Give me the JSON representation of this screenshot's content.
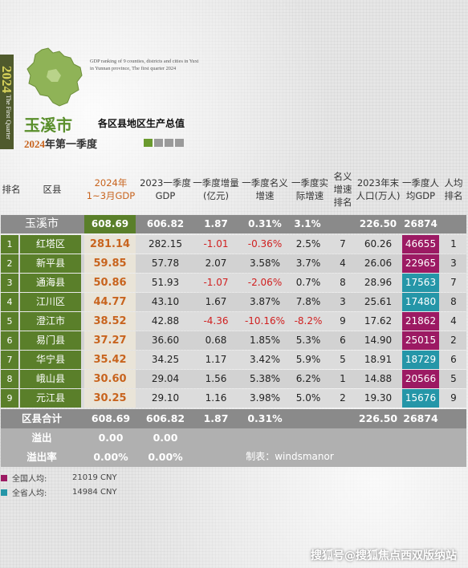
{
  "header": {
    "year_vertical": "2024",
    "quarter_vertical": "The First Quarter",
    "en_caption": "GDP ranking of 9 counties, districts and cities in Yuxi in Yunnan province, The first quarter 2024",
    "city": "玉溪市",
    "subtitle": "各区县地区生产总值",
    "period_year": "2024",
    "period_rest": "年第一季度"
  },
  "columns": {
    "rank": "排名",
    "county": "区县",
    "gdp2024": "2024年\n1~3月GDP",
    "gdp2023": "2023一季度GDP",
    "increase": "一季度增量(亿元)",
    "nominal": "一季度名义增速",
    "real": "一季度实际增速",
    "nominal_rank": "名义增速排名",
    "population": "2023年末人口(万人)",
    "per_capita": "一季度人均GDP",
    "per_capita_rank": "人均排名"
  },
  "summary": {
    "name": "玉溪市",
    "gdp2024": "608.69",
    "gdp2023": "606.82",
    "increase": "1.87",
    "nominal": "0.31%",
    "real": "3.1%",
    "population": "226.50",
    "per_capita": "26874"
  },
  "rows": [
    {
      "rank": "1",
      "name": "红塔区",
      "gdp2024": "281.14",
      "gdp2023": "282.15",
      "increase": "-1.01",
      "nominal": "-0.36%",
      "real": "2.5%",
      "nominal_rank": "7",
      "population": "60.26",
      "per_capita": "46655",
      "pc_rank": "1",
      "pc_color": "#9c1a63",
      "neg_inc": true,
      "neg_nom": true,
      "neg_real": false
    },
    {
      "rank": "2",
      "name": "新平县",
      "gdp2024": "59.85",
      "gdp2023": "57.78",
      "increase": "2.07",
      "nominal": "3.58%",
      "real": "3.7%",
      "nominal_rank": "4",
      "population": "26.06",
      "per_capita": "22965",
      "pc_rank": "3",
      "pc_color": "#9c1a63",
      "neg_inc": false,
      "neg_nom": false,
      "neg_real": false
    },
    {
      "rank": "3",
      "name": "通海县",
      "gdp2024": "50.86",
      "gdp2023": "51.93",
      "increase": "-1.07",
      "nominal": "-2.06%",
      "real": "0.7%",
      "nominal_rank": "8",
      "population": "28.96",
      "per_capita": "17563",
      "pc_rank": "7",
      "pc_color": "#2596a8",
      "neg_inc": true,
      "neg_nom": true,
      "neg_real": false
    },
    {
      "rank": "4",
      "name": "江川区",
      "gdp2024": "44.77",
      "gdp2023": "43.10",
      "increase": "1.67",
      "nominal": "3.87%",
      "real": "7.8%",
      "nominal_rank": "3",
      "population": "25.61",
      "per_capita": "17480",
      "pc_rank": "8",
      "pc_color": "#2596a8",
      "neg_inc": false,
      "neg_nom": false,
      "neg_real": false
    },
    {
      "rank": "5",
      "name": "澄江市",
      "gdp2024": "38.52",
      "gdp2023": "42.88",
      "increase": "-4.36",
      "nominal": "-10.16%",
      "real": "-8.2%",
      "nominal_rank": "9",
      "population": "17.62",
      "per_capita": "21862",
      "pc_rank": "4",
      "pc_color": "#9c1a63",
      "neg_inc": true,
      "neg_nom": true,
      "neg_real": true
    },
    {
      "rank": "6",
      "name": "易门县",
      "gdp2024": "37.27",
      "gdp2023": "36.60",
      "increase": "0.68",
      "nominal": "1.85%",
      "real": "5.3%",
      "nominal_rank": "6",
      "population": "14.90",
      "per_capita": "25015",
      "pc_rank": "2",
      "pc_color": "#9c1a63",
      "neg_inc": false,
      "neg_nom": false,
      "neg_real": false
    },
    {
      "rank": "7",
      "name": "华宁县",
      "gdp2024": "35.42",
      "gdp2023": "34.25",
      "increase": "1.17",
      "nominal": "3.42%",
      "real": "5.9%",
      "nominal_rank": "5",
      "population": "18.91",
      "per_capita": "18729",
      "pc_rank": "6",
      "pc_color": "#2596a8",
      "neg_inc": false,
      "neg_nom": false,
      "neg_real": false
    },
    {
      "rank": "8",
      "name": "峨山县",
      "gdp2024": "30.60",
      "gdp2023": "29.04",
      "increase": "1.56",
      "nominal": "5.38%",
      "real": "6.2%",
      "nominal_rank": "1",
      "population": "14.88",
      "per_capita": "20566",
      "pc_rank": "5",
      "pc_color": "#9c1a63",
      "neg_inc": false,
      "neg_nom": false,
      "neg_real": false
    },
    {
      "rank": "9",
      "name": "元江县",
      "gdp2024": "30.25",
      "gdp2023": "29.10",
      "increase": "1.16",
      "nominal": "3.98%",
      "real": "5.0%",
      "nominal_rank": "2",
      "population": "19.30",
      "per_capita": "15676",
      "pc_rank": "9",
      "pc_color": "#2596a8",
      "neg_inc": false,
      "neg_nom": false,
      "neg_real": false
    }
  ],
  "totals": {
    "label": "区县合计",
    "gdp2024": "608.69",
    "gdp2023": "606.82",
    "increase": "1.87",
    "nominal": "0.31%",
    "population": "226.50",
    "per_capita": "26874"
  },
  "overflow": {
    "label": "溢出",
    "gdp2024": "0.00",
    "gdp2023": "0.00"
  },
  "overflow_rate": {
    "label": "溢出率",
    "gdp2024": "0.00%",
    "gdp2023": "0.00%",
    "credit": "制表：windsmanor"
  },
  "legend": [
    {
      "label": "全国人均:",
      "value": "21019 CNY",
      "color": "#9c1a63"
    },
    {
      "label": "全省人均:",
      "value": "14984 CNY",
      "color": "#2596a8"
    }
  ],
  "watermark": "搜狐号@搜狐焦点西双版纳站",
  "colors": {
    "olive": "#4f5a2c",
    "green_dark": "#5a7f2a",
    "gdp_highlight": "#c8641e",
    "gdp_cell_bg": "#e9e4d8",
    "total_bg": "#8a8a8a",
    "bottom_bg": "#b0b0b0",
    "green_square": "#6a9a2e",
    "grey_square": "#9a9a9a"
  }
}
